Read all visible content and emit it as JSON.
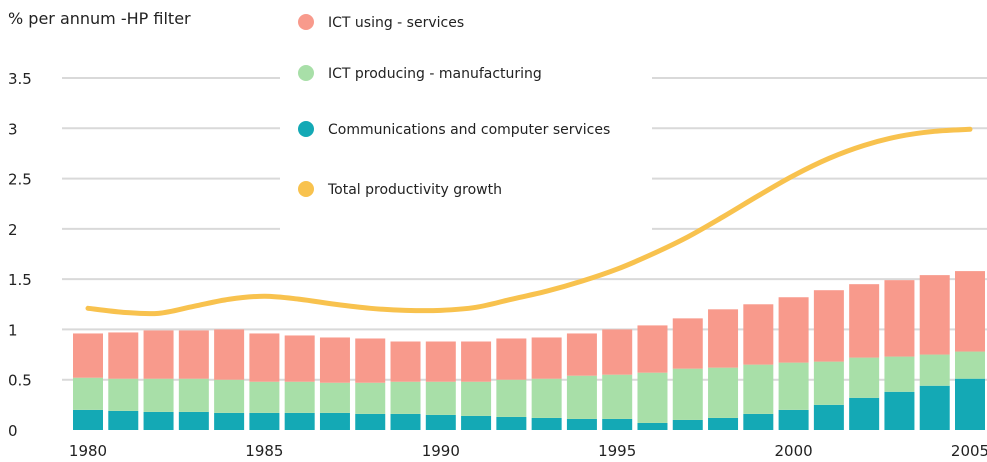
{
  "chart_data": {
    "type": "bar",
    "ylabel": "% per annum -HP filter",
    "ylim": [
      0,
      3.5
    ],
    "yticks": [
      "0",
      "0.5",
      "1",
      "1.5",
      "2",
      "2.5",
      "3",
      "3.5"
    ],
    "xticks": [
      "1980",
      "1985",
      "1990",
      "1995",
      "2000",
      "2005"
    ],
    "grid": true,
    "legend_position": "top-center",
    "x": [
      1980,
      1981,
      1982,
      1983,
      1984,
      1985,
      1986,
      1987,
      1988,
      1989,
      1990,
      1991,
      1992,
      1993,
      1994,
      1995,
      1996,
      1997,
      1998,
      1999,
      2000,
      2001,
      2002,
      2003,
      2004,
      2005
    ],
    "series": [
      {
        "name": "Communications and computer services",
        "kind": "stacked-bar",
        "color": "#14a9b5",
        "values": [
          0.2,
          0.19,
          0.18,
          0.18,
          0.17,
          0.17,
          0.17,
          0.17,
          0.16,
          0.16,
          0.15,
          0.14,
          0.13,
          0.12,
          0.11,
          0.11,
          0.07,
          0.1,
          0.12,
          0.16,
          0.2,
          0.25,
          0.32,
          0.38,
          0.44,
          0.51
        ]
      },
      {
        "name": "ICT producing - manufacturing",
        "kind": "stacked-bar",
        "color": "#a8dfa8",
        "values": [
          0.32,
          0.32,
          0.33,
          0.33,
          0.33,
          0.31,
          0.31,
          0.3,
          0.31,
          0.32,
          0.33,
          0.34,
          0.37,
          0.39,
          0.43,
          0.44,
          0.5,
          0.51,
          0.5,
          0.49,
          0.47,
          0.43,
          0.4,
          0.35,
          0.31,
          0.27
        ]
      },
      {
        "name": "ICT using - services",
        "kind": "stacked-bar",
        "color": "#f89a8c",
        "values": [
          0.44,
          0.46,
          0.48,
          0.48,
          0.5,
          0.48,
          0.46,
          0.45,
          0.44,
          0.4,
          0.4,
          0.4,
          0.41,
          0.41,
          0.42,
          0.45,
          0.47,
          0.5,
          0.58,
          0.6,
          0.65,
          0.71,
          0.73,
          0.76,
          0.79,
          0.8
        ]
      },
      {
        "name": "Total productivity growth",
        "kind": "line",
        "color": "#f8c24e",
        "values": [
          1.21,
          1.17,
          1.16,
          1.23,
          1.3,
          1.33,
          1.3,
          1.25,
          1.21,
          1.19,
          1.19,
          1.22,
          1.3,
          1.38,
          1.48,
          1.6,
          1.75,
          1.92,
          2.12,
          2.33,
          2.53,
          2.7,
          2.83,
          2.92,
          2.97,
          2.99
        ]
      }
    ],
    "legend_order": [
      "ICT using - services",
      "ICT producing - manufacturing",
      "Communications and computer services",
      "Total productivity growth"
    ]
  }
}
